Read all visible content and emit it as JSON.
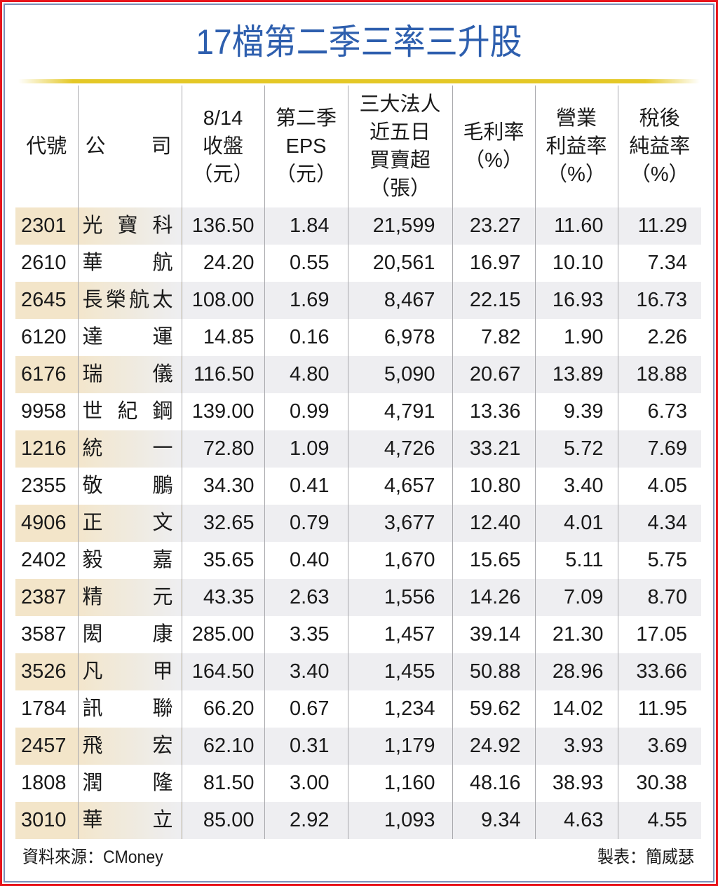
{
  "title": "17檔第二季三率三升股",
  "colors": {
    "title": "#2e5fae",
    "gold_bar": "#e4c826",
    "frame_outer": "#e8141b",
    "frame_inner": "#7c90b8",
    "row_shade": "#eeeef1",
    "row_shade_accent": "#f3e5c9"
  },
  "table": {
    "headers": {
      "code": [
        "代號"
      ],
      "company": [
        "公",
        "司"
      ],
      "close": [
        "8/14",
        "收盤",
        "（元）"
      ],
      "eps": [
        "第二季",
        "EPS",
        "（元）"
      ],
      "institutional": [
        "三大法人",
        "近五日",
        "買賣超",
        "（張）"
      ],
      "gross_margin": [
        "毛利率",
        "（%）"
      ],
      "operating_margin": [
        "營業",
        "利益率",
        "（%）"
      ],
      "net_margin": [
        "稅後",
        "純益率",
        "（%）"
      ]
    },
    "rows": [
      {
        "code": "2301",
        "name": [
          "光",
          "寶",
          "科"
        ],
        "close": "136.50",
        "eps": "1.84",
        "inst": "21,599",
        "gross": "23.27",
        "op": "11.60",
        "net": "11.29"
      },
      {
        "code": "2610",
        "name": [
          "華",
          "航"
        ],
        "close": "24.20",
        "eps": "0.55",
        "inst": "20,561",
        "gross": "16.97",
        "op": "10.10",
        "net": "7.34"
      },
      {
        "code": "2645",
        "name": [
          "長",
          "榮",
          "航",
          "太"
        ],
        "close": "108.00",
        "eps": "1.69",
        "inst": "8,467",
        "gross": "22.15",
        "op": "16.93",
        "net": "16.73"
      },
      {
        "code": "6120",
        "name": [
          "達",
          "運"
        ],
        "close": "14.85",
        "eps": "0.16",
        "inst": "6,978",
        "gross": "7.82",
        "op": "1.90",
        "net": "2.26"
      },
      {
        "code": "6176",
        "name": [
          "瑞",
          "儀"
        ],
        "close": "116.50",
        "eps": "4.80",
        "inst": "5,090",
        "gross": "20.67",
        "op": "13.89",
        "net": "18.88"
      },
      {
        "code": "9958",
        "name": [
          "世",
          "紀",
          "鋼"
        ],
        "close": "139.00",
        "eps": "0.99",
        "inst": "4,791",
        "gross": "13.36",
        "op": "9.39",
        "net": "6.73"
      },
      {
        "code": "1216",
        "name": [
          "統",
          "一"
        ],
        "close": "72.80",
        "eps": "1.09",
        "inst": "4,726",
        "gross": "33.21",
        "op": "5.72",
        "net": "7.69"
      },
      {
        "code": "2355",
        "name": [
          "敬",
          "鵬"
        ],
        "close": "34.30",
        "eps": "0.41",
        "inst": "4,657",
        "gross": "10.80",
        "op": "3.40",
        "net": "4.05"
      },
      {
        "code": "4906",
        "name": [
          "正",
          "文"
        ],
        "close": "32.65",
        "eps": "0.79",
        "inst": "3,677",
        "gross": "12.40",
        "op": "4.01",
        "net": "4.34"
      },
      {
        "code": "2402",
        "name": [
          "毅",
          "嘉"
        ],
        "close": "35.65",
        "eps": "0.40",
        "inst": "1,670",
        "gross": "15.65",
        "op": "5.11",
        "net": "5.75"
      },
      {
        "code": "2387",
        "name": [
          "精",
          "元"
        ],
        "close": "43.35",
        "eps": "2.63",
        "inst": "1,556",
        "gross": "14.26",
        "op": "7.09",
        "net": "8.70"
      },
      {
        "code": "3587",
        "name": [
          "閎",
          "康"
        ],
        "close": "285.00",
        "eps": "3.35",
        "inst": "1,457",
        "gross": "39.14",
        "op": "21.30",
        "net": "17.05"
      },
      {
        "code": "3526",
        "name": [
          "凡",
          "甲"
        ],
        "close": "164.50",
        "eps": "3.40",
        "inst": "1,455",
        "gross": "50.88",
        "op": "28.96",
        "net": "33.66"
      },
      {
        "code": "1784",
        "name": [
          "訊",
          "聯"
        ],
        "close": "66.20",
        "eps": "0.67",
        "inst": "1,234",
        "gross": "59.62",
        "op": "14.02",
        "net": "11.95"
      },
      {
        "code": "2457",
        "name": [
          "飛",
          "宏"
        ],
        "close": "62.10",
        "eps": "0.31",
        "inst": "1,179",
        "gross": "24.92",
        "op": "3.93",
        "net": "3.69"
      },
      {
        "code": "1808",
        "name": [
          "潤",
          "隆"
        ],
        "close": "81.50",
        "eps": "3.00",
        "inst": "1,160",
        "gross": "48.16",
        "op": "38.93",
        "net": "30.38"
      },
      {
        "code": "3010",
        "name": [
          "華",
          "立"
        ],
        "close": "85.00",
        "eps": "2.92",
        "inst": "1,093",
        "gross": "9.34",
        "op": "4.63",
        "net": "4.55"
      }
    ]
  },
  "footer": {
    "source": "資料來源：CMoney",
    "author": "製表：簡威瑟"
  }
}
